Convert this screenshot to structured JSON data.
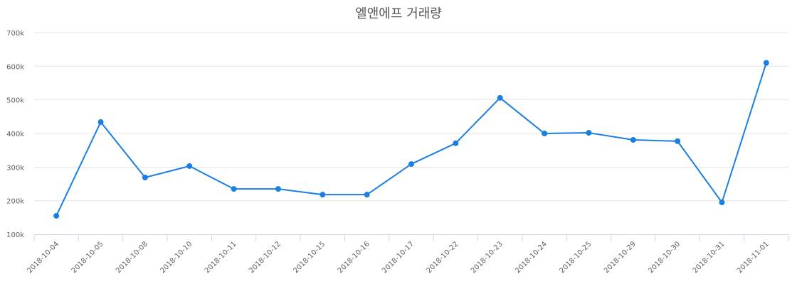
{
  "chart_data": {
    "type": "line",
    "title": "엘앤에프 거래량",
    "xlabel": "",
    "ylabel": "",
    "ylim": [
      100000,
      700000
    ],
    "yticks": [
      "100k",
      "200k",
      "300k",
      "400k",
      "500k",
      "600k",
      "700k"
    ],
    "ytick_values": [
      100000,
      200000,
      300000,
      400000,
      500000,
      600000,
      700000
    ],
    "grid": true,
    "legend": null,
    "categories": [
      "2018-10-04",
      "2018-10-05",
      "2018-10-08",
      "2018-10-10",
      "2018-10-11",
      "2018-10-12",
      "2018-10-15",
      "2018-10-16",
      "2018-10-17",
      "2018-10-22",
      "2018-10-23",
      "2018-10-24",
      "2018-10-25",
      "2018-10-29",
      "2018-10-30",
      "2018-10-31",
      "2018-11-01"
    ],
    "series": [
      {
        "name": "거래량",
        "color": "#1a7fe0",
        "values": [
          155000,
          434000,
          269000,
          303000,
          235000,
          235000,
          218000,
          218000,
          309000,
          371000,
          506000,
          400000,
          402000,
          381000,
          377000,
          195000,
          610000
        ]
      }
    ]
  },
  "colors": {
    "line": "#1a7fe0",
    "grid": "#e6e6e6",
    "axis": "#ccd6eb",
    "title": "#555555",
    "tick_text": "#606060"
  }
}
